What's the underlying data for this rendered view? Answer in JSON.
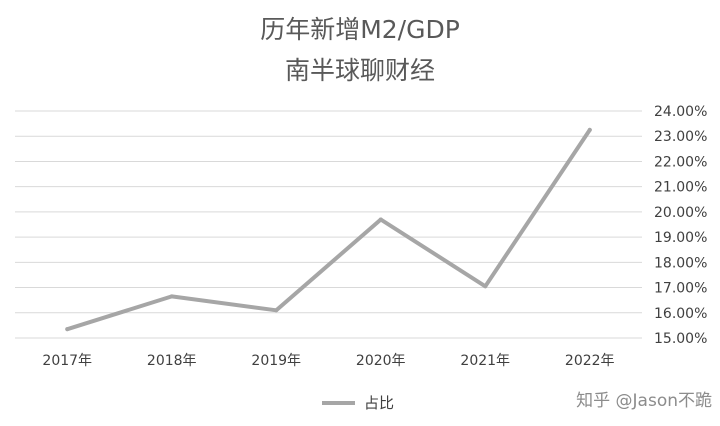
{
  "chart_data": {
    "type": "line",
    "title": "历年新增M2/GDP",
    "subtitle": "南半球聊财经",
    "categories": [
      "2017年",
      "2018年",
      "2019年",
      "2020年",
      "2021年",
      "2022年"
    ],
    "series": [
      {
        "name": "占比",
        "values": [
          15.35,
          16.65,
          16.1,
          19.7,
          17.05,
          23.25
        ],
        "color": "#a6a6a6"
      }
    ],
    "ylim": [
      15,
      24
    ],
    "y_ticks": [
      "15.00%",
      "16.00%",
      "17.00%",
      "18.00%",
      "19.00%",
      "20.00%",
      "21.00%",
      "22.00%",
      "23.00%",
      "24.00%"
    ],
    "y_axis_position": "right",
    "grid": true,
    "legend": "bottom"
  },
  "watermark": "知乎 @Jason不跪",
  "colors": {
    "gridline": "#d9d9d9",
    "line": "#a6a6a6",
    "title": "#595959"
  }
}
